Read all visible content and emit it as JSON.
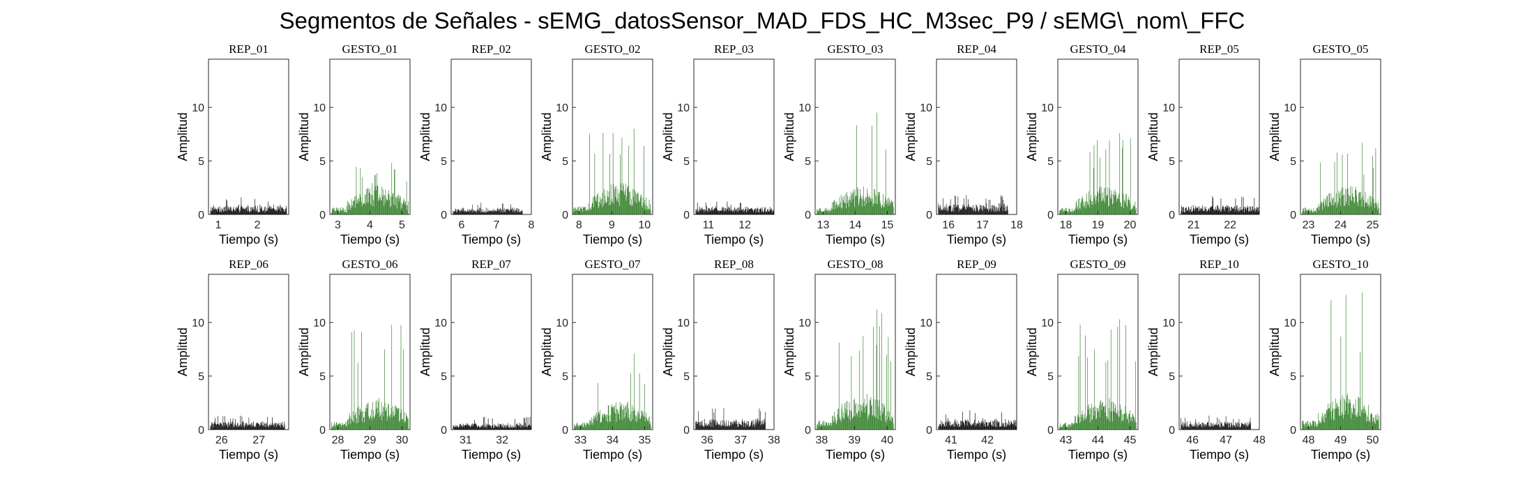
{
  "figure": {
    "title": "Segmentos de Señales - sEMG_datosSensor_MAD_FDS_HC_M3sec_P9 / sEMG\\_nom\\_FFC"
  },
  "colors": {
    "rep": "#000000",
    "gesto": "#2e7d24"
  },
  "chart_data": [
    {
      "type": "bar",
      "title": "REP_01",
      "kind": "rep",
      "xlabel": "Tiempo (s)",
      "ylabel": "Amplitud",
      "xlim": [
        0.75,
        2.8
      ],
      "ylim": [
        0,
        14.5
      ],
      "xticks": [
        1,
        2
      ],
      "yticks": [
        0,
        5,
        10
      ],
      "x": [
        0.8,
        2.75
      ],
      "y_max": 1.6,
      "y_typical": 0.7
    },
    {
      "type": "bar",
      "title": "GESTO_01",
      "kind": "gesto",
      "xlabel": "Tiempo (s)",
      "ylabel": "Amplitud",
      "xlim": [
        2.75,
        5.25
      ],
      "ylim": [
        0,
        14.5
      ],
      "xticks": [
        3,
        4,
        5
      ],
      "yticks": [
        0,
        5,
        10
      ],
      "x": [
        2.8,
        5.2
      ],
      "y_max": 4.8,
      "y_typical": 2.0
    },
    {
      "type": "bar",
      "title": "REP_02",
      "kind": "rep",
      "xlabel": "Tiempo (s)",
      "ylabel": "Amplitud",
      "xlim": [
        5.7,
        8.0
      ],
      "ylim": [
        0,
        14.5
      ],
      "xticks": [
        6,
        7,
        8
      ],
      "yticks": [
        0,
        5,
        10
      ],
      "x": [
        5.75,
        7.75
      ],
      "y_max": 1.1,
      "y_typical": 0.5
    },
    {
      "type": "bar",
      "title": "GESTO_02",
      "kind": "gesto",
      "xlabel": "Tiempo (s)",
      "ylabel": "Amplitud",
      "xlim": [
        7.8,
        10.25
      ],
      "ylim": [
        0,
        14.5
      ],
      "xticks": [
        8,
        9,
        10
      ],
      "yticks": [
        0,
        5,
        10
      ],
      "x": [
        7.8,
        10.2
      ],
      "y_max": 8.0,
      "y_typical": 2.2
    },
    {
      "type": "bar",
      "title": "REP_03",
      "kind": "rep",
      "xlabel": "Tiempo (s)",
      "ylabel": "Amplitud",
      "xlim": [
        10.6,
        12.8
      ],
      "ylim": [
        0,
        14.5
      ],
      "xticks": [
        11,
        12
      ],
      "yticks": [
        0,
        5,
        10
      ],
      "x": [
        10.65,
        12.8
      ],
      "y_max": 1.2,
      "y_typical": 0.6
    },
    {
      "type": "bar",
      "title": "GESTO_03",
      "kind": "gesto",
      "xlabel": "Tiempo (s)",
      "ylabel": "Amplitud",
      "xlim": [
        12.75,
        15.25
      ],
      "ylim": [
        0,
        14.5
      ],
      "xticks": [
        13,
        14,
        15
      ],
      "yticks": [
        0,
        5,
        10
      ],
      "x": [
        12.8,
        15.2
      ],
      "y_max": 9.5,
      "y_typical": 2.0
    },
    {
      "type": "bar",
      "title": "REP_04",
      "kind": "rep",
      "xlabel": "Tiempo (s)",
      "ylabel": "Amplitud",
      "xlim": [
        15.65,
        18.0
      ],
      "ylim": [
        0,
        14.5
      ],
      "xticks": [
        16,
        17,
        18
      ],
      "yticks": [
        0,
        5,
        10
      ],
      "x": [
        15.7,
        17.75
      ],
      "y_max": 1.8,
      "y_typical": 0.8
    },
    {
      "type": "bar",
      "title": "GESTO_04",
      "kind": "gesto",
      "xlabel": "Tiempo (s)",
      "ylabel": "Amplitud",
      "xlim": [
        17.75,
        20.25
      ],
      "ylim": [
        0,
        14.5
      ],
      "xticks": [
        18,
        19,
        20
      ],
      "yticks": [
        0,
        5,
        10
      ],
      "x": [
        17.8,
        20.2
      ],
      "y_max": 7.6,
      "y_typical": 2.0
    },
    {
      "type": "bar",
      "title": "REP_05",
      "kind": "rep",
      "xlabel": "Tiempo (s)",
      "ylabel": "Amplitud",
      "xlim": [
        20.6,
        22.8
      ],
      "ylim": [
        0,
        14.5
      ],
      "xticks": [
        21,
        22
      ],
      "yticks": [
        0,
        5,
        10
      ],
      "x": [
        20.65,
        22.8
      ],
      "y_max": 1.7,
      "y_typical": 0.7
    },
    {
      "type": "bar",
      "title": "GESTO_05",
      "kind": "gesto",
      "xlabel": "Tiempo (s)",
      "ylabel": "Amplitud",
      "xlim": [
        22.75,
        25.25
      ],
      "ylim": [
        0,
        14.5
      ],
      "xticks": [
        23,
        24,
        25
      ],
      "yticks": [
        0,
        5,
        10
      ],
      "x": [
        22.8,
        25.2
      ],
      "y_max": 6.7,
      "y_typical": 2.0
    },
    {
      "type": "bar",
      "title": "REP_06",
      "kind": "rep",
      "xlabel": "Tiempo (s)",
      "ylabel": "Amplitud",
      "xlim": [
        25.65,
        27.8
      ],
      "ylim": [
        0,
        14.5
      ],
      "xticks": [
        26,
        27
      ],
      "yticks": [
        0,
        5,
        10
      ],
      "x": [
        25.7,
        27.7
      ],
      "y_max": 1.3,
      "y_typical": 0.6
    },
    {
      "type": "bar",
      "title": "GESTO_06",
      "kind": "gesto",
      "xlabel": "Tiempo (s)",
      "ylabel": "Amplitud",
      "xlim": [
        27.75,
        30.25
      ],
      "ylim": [
        0,
        14.5
      ],
      "xticks": [
        28,
        29,
        30
      ],
      "yticks": [
        0,
        5,
        10
      ],
      "x": [
        27.8,
        30.2
      ],
      "y_max": 9.8,
      "y_typical": 2.2
    },
    {
      "type": "bar",
      "title": "REP_07",
      "kind": "rep",
      "xlabel": "Tiempo (s)",
      "ylabel": "Amplitud",
      "xlim": [
        30.6,
        32.8
      ],
      "ylim": [
        0,
        14.5
      ],
      "xticks": [
        31,
        32
      ],
      "yticks": [
        0,
        5,
        10
      ],
      "x": [
        30.65,
        32.8
      ],
      "y_max": 1.2,
      "y_typical": 0.5
    },
    {
      "type": "bar",
      "title": "GESTO_07",
      "kind": "gesto",
      "xlabel": "Tiempo (s)",
      "ylabel": "Amplitud",
      "xlim": [
        32.75,
        35.25
      ],
      "ylim": [
        0,
        14.5
      ],
      "xticks": [
        33,
        34,
        35
      ],
      "yticks": [
        0,
        5,
        10
      ],
      "x": [
        32.8,
        35.2
      ],
      "y_max": 7.1,
      "y_typical": 2.0
    },
    {
      "type": "bar",
      "title": "REP_08",
      "kind": "rep",
      "xlabel": "Tiempo (s)",
      "ylabel": "Amplitud",
      "xlim": [
        35.6,
        38.0
      ],
      "ylim": [
        0,
        14.5
      ],
      "xticks": [
        36,
        37,
        38
      ],
      "yticks": [
        0,
        5,
        10
      ],
      "x": [
        35.65,
        37.75
      ],
      "y_max": 2.0,
      "y_typical": 0.8
    },
    {
      "type": "bar",
      "title": "GESTO_08",
      "kind": "gesto",
      "xlabel": "Tiempo (s)",
      "ylabel": "Amplitud",
      "xlim": [
        37.8,
        40.25
      ],
      "ylim": [
        0,
        14.5
      ],
      "xticks": [
        38,
        39,
        40
      ],
      "yticks": [
        0,
        5,
        10
      ],
      "x": [
        37.85,
        40.2
      ],
      "y_max": 11.2,
      "y_typical": 2.5
    },
    {
      "type": "bar",
      "title": "REP_09",
      "kind": "rep",
      "xlabel": "Tiempo (s)",
      "ylabel": "Amplitud",
      "xlim": [
        40.6,
        42.8
      ],
      "ylim": [
        0,
        14.5
      ],
      "xticks": [
        41,
        42
      ],
      "yticks": [
        0,
        5,
        10
      ],
      "x": [
        40.65,
        42.8
      ],
      "y_max": 1.8,
      "y_typical": 0.8
    },
    {
      "type": "bar",
      "title": "GESTO_09",
      "kind": "gesto",
      "xlabel": "Tiempo (s)",
      "ylabel": "Amplitud",
      "xlim": [
        42.75,
        45.25
      ],
      "ylim": [
        0,
        14.5
      ],
      "xticks": [
        43,
        44,
        45
      ],
      "yticks": [
        0,
        5,
        10
      ],
      "x": [
        42.8,
        45.2
      ],
      "y_max": 10.3,
      "y_typical": 2.2
    },
    {
      "type": "bar",
      "title": "REP_10",
      "kind": "rep",
      "xlabel": "Tiempo (s)",
      "ylabel": "Amplitud",
      "xlim": [
        45.6,
        48.0
      ],
      "ylim": [
        0,
        14.5
      ],
      "xticks": [
        46,
        47,
        48
      ],
      "yticks": [
        0,
        5,
        10
      ],
      "x": [
        45.65,
        47.75
      ],
      "y_max": 1.3,
      "y_typical": 0.6
    },
    {
      "type": "bar",
      "title": "GESTO_10",
      "kind": "gesto",
      "xlabel": "Tiempo (s)",
      "ylabel": "Amplitud",
      "xlim": [
        47.75,
        50.25
      ],
      "ylim": [
        0,
        14.5
      ],
      "xticks": [
        48,
        49,
        50
      ],
      "yticks": [
        0,
        5,
        10
      ],
      "x": [
        47.8,
        50.2
      ],
      "y_max": 12.8,
      "y_typical": 2.5
    }
  ]
}
